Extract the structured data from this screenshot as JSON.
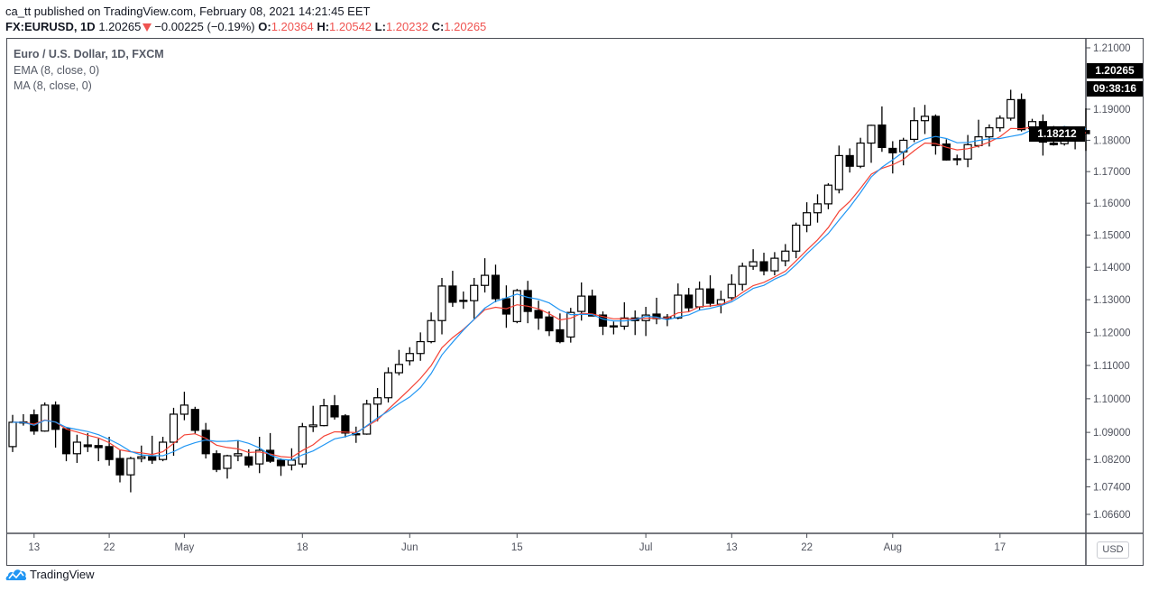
{
  "header": {
    "published_line": "ca_tt published on TradingView.com, February 08, 2021 14:21:45 EET",
    "symbol": "FX:EURUSD, 1D",
    "last": "1.20265",
    "change": "−0.00225 (−0.19%)",
    "o_label": "O:",
    "o_value": "1.20364",
    "h_label": "H:",
    "h_value": "1.20542",
    "l_label": "L:",
    "l_value": "1.20232",
    "c_label": "C:",
    "c_value": "1.20265",
    "change_direction_icon": "triangle-down-icon",
    "down_color": "#ef5350"
  },
  "legend": {
    "title": "Euro / U.S. Dollar, 1D, FXCM",
    "ema": "EMA (8, close, 0)",
    "ma": "MA (8, close, 0)"
  },
  "price_axis": {
    "currency_button": "USD",
    "last_price_label": "1.20265",
    "countdown_label": "09:38:16",
    "crosshair_price_label": "1.18212"
  },
  "footer": {
    "brand": "TradingView",
    "brand_color": "#2196f3"
  },
  "chart_data": {
    "type": "candlestick",
    "y_scale": "log",
    "grid": false,
    "colors": {
      "up_body": "#ffffff",
      "down_body": "#000000",
      "ema": "#f44336",
      "ma": "#2196f3"
    },
    "indicators": [
      {
        "name": "EMA (8, close, 0)",
        "kind": "ema",
        "period": 8,
        "color": "#f44336"
      },
      {
        "name": "MA (8, close, 0)",
        "kind": "sma",
        "period": 8,
        "color": "#2196f3"
      }
    ],
    "y_ticks": [
      "1.21000",
      "1.19000",
      "1.18000",
      "1.17000",
      "1.16000",
      "1.15000",
      "1.14000",
      "1.13000",
      "1.12000",
      "1.11000",
      "1.10000",
      "1.09000",
      "1.08200",
      "1.07400",
      "1.06600"
    ],
    "x_ticks": [
      {
        "label": "13",
        "date": "Apr 13"
      },
      {
        "label": "22",
        "date": "Apr 22"
      },
      {
        "label": "May",
        "date": "May 1"
      },
      {
        "label": "18",
        "date": "May 18"
      },
      {
        "label": "Jun",
        "date": "Jun 1"
      },
      {
        "label": "15",
        "date": "Jun 15"
      },
      {
        "label": "Jul",
        "date": "Jul 1"
      },
      {
        "label": "13",
        "date": "Jul 13"
      },
      {
        "label": "22",
        "date": "Jul 22"
      },
      {
        "label": "Aug",
        "date": "Aug 3"
      },
      {
        "label": "17",
        "date": "Aug 17"
      }
    ],
    "ohlc_fields": [
      "date",
      "open",
      "high",
      "low",
      "close"
    ],
    "ohlc": [
      [
        "Apr 9",
        1.0858,
        1.0952,
        1.0842,
        1.093
      ],
      [
        "Apr 10",
        1.0931,
        1.0954,
        1.092,
        1.0929
      ],
      [
        "Apr 13",
        1.0952,
        1.0968,
        1.0893,
        1.0904
      ],
      [
        "Apr 14",
        1.0904,
        1.0989,
        1.0902,
        1.0981
      ],
      [
        "Apr 15",
        1.0981,
        1.0992,
        1.0855,
        1.0909
      ],
      [
        "Apr 16",
        1.0911,
        1.0912,
        1.0815,
        1.0837
      ],
      [
        "Apr 17",
        1.0837,
        1.0893,
        1.081,
        1.0871
      ],
      [
        "Apr 20",
        1.0863,
        1.0898,
        1.0842,
        1.0858
      ],
      [
        "Apr 21",
        1.0861,
        1.0882,
        1.0815,
        1.0855
      ],
      [
        "Apr 22",
        1.0858,
        1.0887,
        1.0802,
        1.082
      ],
      [
        "Apr 23",
        1.0823,
        1.0847,
        1.0753,
        1.0775
      ],
      [
        "Apr 24",
        1.0775,
        1.0828,
        1.0724,
        1.0823
      ],
      [
        "Apr 27",
        1.0823,
        1.0861,
        1.0812,
        1.0828
      ],
      [
        "Apr 28",
        1.0828,
        1.089,
        1.0807,
        1.0818
      ],
      [
        "Apr 29",
        1.082,
        1.0887,
        1.0815,
        1.0871
      ],
      [
        "Apr 30",
        1.0871,
        1.0973,
        1.0831,
        1.0954
      ],
      [
        "May 1",
        1.0954,
        1.1021,
        1.0936,
        1.0981
      ],
      [
        "May 4",
        1.0968,
        1.0976,
        1.0896,
        1.0906
      ],
      [
        "May 5",
        1.0906,
        1.0928,
        1.0823,
        1.0837
      ],
      [
        "May 6",
        1.0837,
        1.0847,
        1.0783,
        1.0791
      ],
      [
        "May 7",
        1.0794,
        1.0834,
        1.0764,
        1.0831
      ],
      [
        "May 8",
        1.0831,
        1.0877,
        1.0815,
        1.0837
      ],
      [
        "May 11",
        1.0828,
        1.085,
        1.0796,
        1.0804
      ],
      [
        "May 12",
        1.0807,
        1.0887,
        1.078,
        1.0847
      ],
      [
        "May 13",
        1.0847,
        1.0898,
        1.081,
        1.0815
      ],
      [
        "May 14",
        1.0818,
        1.0823,
        1.0772,
        1.0802
      ],
      [
        "May 15",
        1.0804,
        1.0853,
        1.0788,
        1.0818
      ],
      [
        "May 18",
        1.0807,
        1.0928,
        1.0796,
        1.0917
      ],
      [
        "May 19",
        1.0917,
        1.0979,
        1.0901,
        1.0922
      ],
      [
        "May 20",
        1.092,
        1.1,
        1.0918,
        1.0979
      ],
      [
        "May 21",
        1.0979,
        1.1011,
        1.0938,
        1.0946
      ],
      [
        "May 22",
        1.0949,
        1.0954,
        1.0885,
        1.0898
      ],
      [
        "May 25",
        1.0896,
        1.0917,
        1.0869,
        1.0894
      ],
      [
        "May 26",
        1.0895,
        1.0997,
        1.0893,
        1.0984
      ],
      [
        "May 27",
        1.0984,
        1.1032,
        1.0933,
        1.1003
      ],
      [
        "May 28",
        1.1003,
        1.1094,
        1.0989,
        1.1078
      ],
      [
        "May 29",
        1.1078,
        1.1147,
        1.107,
        1.1103
      ],
      [
        "Jun 1",
        1.1114,
        1.1155,
        1.11,
        1.1136
      ],
      [
        "Jun 2",
        1.1136,
        1.12,
        1.1114,
        1.1172
      ],
      [
        "Jun 3",
        1.1172,
        1.1261,
        1.1167,
        1.1236
      ],
      [
        "Jun 4",
        1.1236,
        1.1367,
        1.1194,
        1.1342
      ],
      [
        "Jun 5",
        1.1342,
        1.1389,
        1.1278,
        1.1292
      ],
      [
        "Jun 8",
        1.1298,
        1.1325,
        1.1272,
        1.1296
      ],
      [
        "Jun 9",
        1.1297,
        1.1367,
        1.1242,
        1.1344
      ],
      [
        "Jun 10",
        1.1344,
        1.1428,
        1.1322,
        1.1375
      ],
      [
        "Jun 11",
        1.1375,
        1.1408,
        1.1292,
        1.1303
      ],
      [
        "Jun 12",
        1.1303,
        1.1344,
        1.1214,
        1.1256
      ],
      [
        "Jun 15",
        1.1233,
        1.1333,
        1.1228,
        1.1328
      ],
      [
        "Jun 16",
        1.1328,
        1.1358,
        1.1228,
        1.1264
      ],
      [
        "Jun 17",
        1.1267,
        1.1297,
        1.1208,
        1.1244
      ],
      [
        "Jun 18",
        1.1247,
        1.1264,
        1.1189,
        1.1205
      ],
      [
        "Jun 19",
        1.1208,
        1.1258,
        1.1167,
        1.1172
      ],
      [
        "Jun 22",
        1.1186,
        1.1275,
        1.1169,
        1.1261
      ],
      [
        "Jun 23",
        1.1264,
        1.1353,
        1.1236,
        1.1311
      ],
      [
        "Jun 24",
        1.1311,
        1.1331,
        1.1249,
        1.125
      ],
      [
        "Jun 25",
        1.1253,
        1.1264,
        1.1192,
        1.1219
      ],
      [
        "Jun 26",
        1.122,
        1.1233,
        1.1194,
        1.1218
      ],
      [
        "Jun 29",
        1.1219,
        1.1292,
        1.1208,
        1.1244
      ],
      [
        "Jun 30",
        1.1244,
        1.1267,
        1.1192,
        1.1236
      ],
      [
        "Jul 1",
        1.1236,
        1.1278,
        1.1189,
        1.1253
      ],
      [
        "Jul 2",
        1.1256,
        1.1306,
        1.1225,
        1.1242
      ],
      [
        "Jul 3",
        1.1242,
        1.1256,
        1.1219,
        1.1247
      ],
      [
        "Jul 6",
        1.1244,
        1.135,
        1.124,
        1.1314
      ],
      [
        "Jul 7",
        1.1314,
        1.1336,
        1.1264,
        1.1275
      ],
      [
        "Jul 8",
        1.1278,
        1.1356,
        1.1267,
        1.1333
      ],
      [
        "Jul 9",
        1.1333,
        1.1375,
        1.1278,
        1.1289
      ],
      [
        "Jul 10",
        1.1286,
        1.1328,
        1.1258,
        1.13
      ],
      [
        "Jul 13",
        1.1306,
        1.1378,
        1.1297,
        1.1347
      ],
      [
        "Jul 14",
        1.1347,
        1.1414,
        1.1328,
        1.1403
      ],
      [
        "Jul 15",
        1.1403,
        1.1456,
        1.1392,
        1.1417
      ],
      [
        "Jul 16",
        1.1417,
        1.1445,
        1.1375,
        1.1389
      ],
      [
        "Jul 17",
        1.1389,
        1.1447,
        1.1375,
        1.1428
      ],
      [
        "Jul 20",
        1.142,
        1.1472,
        1.1403,
        1.145
      ],
      [
        "Jul 21",
        1.145,
        1.1539,
        1.1428,
        1.1531
      ],
      [
        "Jul 22",
        1.1531,
        1.1603,
        1.1509,
        1.157
      ],
      [
        "Jul 23",
        1.157,
        1.1628,
        1.1539,
        1.1598
      ],
      [
        "Jul 24",
        1.1598,
        1.1663,
        1.1581,
        1.1657
      ],
      [
        "Jul 27",
        1.1643,
        1.1783,
        1.1631,
        1.1751
      ],
      [
        "Jul 28",
        1.1751,
        1.1774,
        1.1697,
        1.1717
      ],
      [
        "Jul 29",
        1.1717,
        1.1808,
        1.1711,
        1.1791
      ],
      [
        "Jul 30",
        1.1791,
        1.185,
        1.1728,
        1.1848
      ],
      [
        "Jul 31",
        1.1849,
        1.1909,
        1.1763,
        1.1777
      ],
      [
        "Aug 3",
        1.1774,
        1.1797,
        1.1694,
        1.176
      ],
      [
        "Aug 4",
        1.1763,
        1.1808,
        1.172,
        1.18
      ],
      [
        "Aug 5",
        1.1803,
        1.1906,
        1.1794,
        1.1863
      ],
      [
        "Aug 6",
        1.1863,
        1.1914,
        1.182,
        1.1877
      ],
      [
        "Aug 7",
        1.1877,
        1.1883,
        1.1754,
        1.1783
      ],
      [
        "Aug 10",
        1.1788,
        1.1803,
        1.1735,
        1.1737
      ],
      [
        "Aug 11",
        1.1741,
        1.1754,
        1.172,
        1.1739
      ],
      [
        "Aug 12",
        1.174,
        1.1817,
        1.1714,
        1.1786
      ],
      [
        "Aug 13",
        1.1783,
        1.1866,
        1.1777,
        1.1811
      ],
      [
        "Aug 14",
        1.1811,
        1.1851,
        1.178,
        1.184
      ],
      [
        "Aug 17",
        1.184,
        1.188,
        1.1828,
        1.1871
      ],
      [
        "Aug 18",
        1.1871,
        1.1963,
        1.1863,
        1.1931
      ],
      [
        "Aug 19",
        1.1931,
        1.1951,
        1.1828,
        1.1834
      ],
      [
        "Aug 20",
        1.1837,
        1.1869,
        1.18,
        1.186
      ],
      [
        "Aug 21",
        1.186,
        1.1883,
        1.1751,
        1.1794
      ],
      [
        "Aug 24",
        1.1791,
        1.1846,
        1.1783,
        1.1786
      ],
      [
        "Aug 25",
        1.1789,
        1.1846,
        1.1783,
        1.1834
      ],
      [
        "Aug 26",
        1.1834,
        1.1837,
        1.1771,
        1.1828
      ],
      [
        "Aug 27",
        1.1831,
        1.1903,
        1.1766,
        1.18212
      ]
    ]
  }
}
